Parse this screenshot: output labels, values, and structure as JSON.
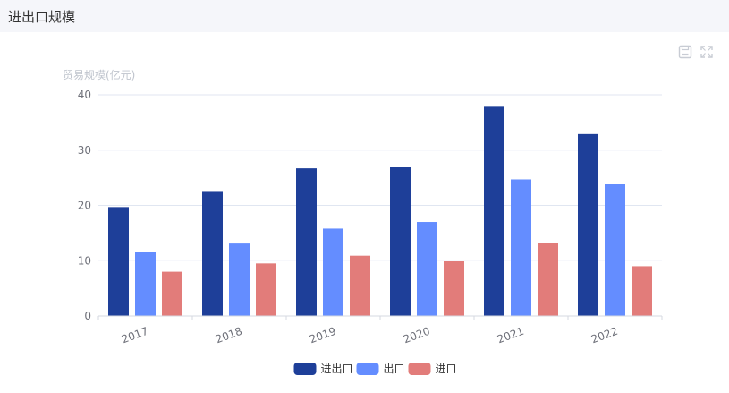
{
  "header": {
    "title": "进出口规模"
  },
  "toolbox": {
    "save_icon": "save-image-icon",
    "fullscreen_icon": "fullscreen-icon",
    "color": "#c8ccd4"
  },
  "chart_data": {
    "type": "bar",
    "ylabel": "贸易规模(亿元)",
    "xlabel": "",
    "categories": [
      "2017",
      "2018",
      "2019",
      "2020",
      "2021",
      "2022"
    ],
    "ylim": [
      0,
      40
    ],
    "yticks": [
      0,
      10,
      20,
      30,
      40
    ],
    "grid": true,
    "legend_position": "bottom-center",
    "x_label_rotation_deg": 20,
    "series": [
      {
        "name": "进出口",
        "color": "#1e3f99",
        "values": [
          19.7,
          22.6,
          26.7,
          27.0,
          38.0,
          32.9
        ]
      },
      {
        "name": "出口",
        "color": "#648dff",
        "values": [
          11.6,
          13.1,
          15.8,
          17.0,
          24.7,
          23.9
        ]
      },
      {
        "name": "进口",
        "color": "#e27c7a",
        "values": [
          8.0,
          9.5,
          10.9,
          9.9,
          13.2,
          9.0
        ]
      }
    ]
  }
}
